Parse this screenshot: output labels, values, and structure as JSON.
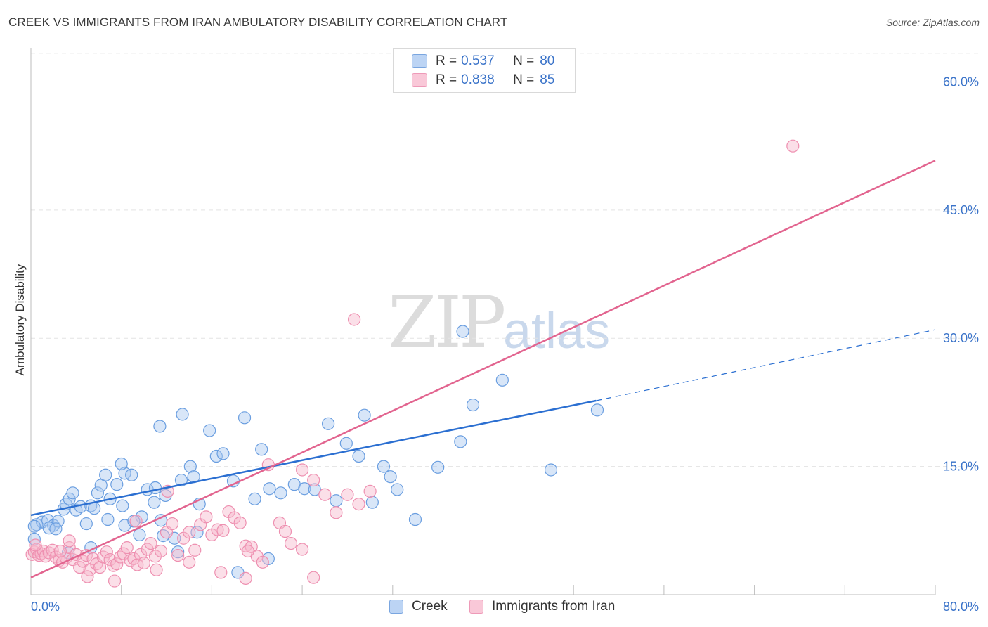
{
  "title": "CREEK VS IMMIGRANTS FROM IRAN AMBULATORY DISABILITY CORRELATION CHART",
  "source": "Source: ZipAtlas.com",
  "watermark": {
    "zip": "ZIP",
    "atlas": "atlas"
  },
  "legend": {
    "rows": [
      {
        "r_label": "R =",
        "r_value": "0.537",
        "n_label": "N =",
        "n_value": "80"
      },
      {
        "r_label": "R =",
        "r_value": "0.838",
        "n_label": "N =",
        "n_value": "85"
      }
    ]
  },
  "bottom_legend": {
    "creek": "Creek",
    "iran": "Immigrants from Iran"
  },
  "colors": {
    "creek_fill": "#a9c8f0",
    "creek_stroke": "#6a9ee0",
    "creek_line": "#2b6fd1",
    "iran_fill": "#f7b8cd",
    "iran_stroke": "#ee8fb0",
    "iran_line": "#e2648f",
    "tick_text": "#3a73c9"
  },
  "chart_data": {
    "type": "scatter",
    "title": "CREEK VS IMMIGRANTS FROM IRAN AMBULATORY DISABILITY CORRELATION CHART",
    "xlabel": "",
    "ylabel": "Ambulatory Disability",
    "xlim": [
      0,
      80
    ],
    "ylim": [
      0,
      63
    ],
    "x_tick_labels": [
      "0.0%",
      "80.0%"
    ],
    "y_ticks": [
      15,
      30,
      45,
      60
    ],
    "y_tick_labels": [
      "15.0%",
      "30.0%",
      "45.0%",
      "60.0%"
    ],
    "series": [
      {
        "name": "Creek",
        "r": 0.537,
        "n": 80,
        "trend": {
          "x0": 0,
          "y0": 9.3,
          "x1": 50,
          "y1": 22.7,
          "dash_to_x": 80,
          "dash_to_y": 31.0
        },
        "points": [
          [
            0.5,
            8.2
          ],
          [
            1.0,
            8.5
          ],
          [
            1.5,
            8.7
          ],
          [
            2.0,
            8.1
          ],
          [
            2.4,
            8.6
          ],
          [
            2.9,
            10.0
          ],
          [
            3.1,
            10.6
          ],
          [
            3.4,
            11.2
          ],
          [
            3.7,
            11.9
          ],
          [
            4.0,
            9.9
          ],
          [
            4.4,
            10.3
          ],
          [
            4.9,
            8.3
          ],
          [
            5.3,
            10.4
          ],
          [
            5.6,
            10.1
          ],
          [
            5.9,
            11.9
          ],
          [
            6.2,
            12.8
          ],
          [
            6.6,
            14.0
          ],
          [
            7.0,
            11.2
          ],
          [
            7.6,
            12.9
          ],
          [
            8.3,
            14.2
          ],
          [
            8.9,
            14.0
          ],
          [
            9.8,
            9.1
          ],
          [
            10.3,
            12.3
          ],
          [
            10.9,
            10.8
          ],
          [
            11.4,
            19.7
          ],
          [
            11.9,
            11.6
          ],
          [
            12.7,
            6.6
          ],
          [
            13.3,
            13.4
          ],
          [
            14.1,
            15.0
          ],
          [
            14.9,
            10.6
          ],
          [
            15.8,
            19.2
          ],
          [
            16.4,
            16.2
          ],
          [
            17.0,
            16.5
          ],
          [
            17.9,
            13.3
          ],
          [
            18.9,
            20.7
          ],
          [
            19.8,
            11.2
          ],
          [
            20.4,
            17.0
          ],
          [
            21.1,
            12.4
          ],
          [
            22.1,
            11.9
          ],
          [
            23.3,
            12.9
          ],
          [
            24.2,
            12.4
          ],
          [
            25.1,
            12.3
          ],
          [
            26.3,
            20.0
          ],
          [
            27.0,
            11.0
          ],
          [
            27.9,
            17.7
          ],
          [
            29.0,
            16.2
          ],
          [
            29.5,
            21.0
          ],
          [
            30.2,
            10.8
          ],
          [
            31.2,
            15.0
          ],
          [
            31.8,
            13.8
          ],
          [
            32.4,
            12.3
          ],
          [
            34.0,
            8.8
          ],
          [
            36.0,
            14.9
          ],
          [
            38.0,
            17.9
          ],
          [
            39.1,
            22.2
          ],
          [
            38.2,
            30.8
          ],
          [
            41.7,
            25.1
          ],
          [
            50.1,
            21.6
          ],
          [
            46.0,
            14.6
          ],
          [
            21.0,
            4.2
          ],
          [
            18.3,
            2.6
          ],
          [
            13.0,
            5.0
          ],
          [
            11.7,
            6.9
          ],
          [
            9.6,
            7.0
          ],
          [
            8.3,
            8.1
          ],
          [
            6.8,
            8.8
          ],
          [
            5.3,
            5.5
          ],
          [
            3.3,
            4.9
          ],
          [
            1.6,
            7.8
          ],
          [
            0.3,
            8.0
          ],
          [
            11.5,
            8.7
          ],
          [
            14.7,
            7.3
          ],
          [
            8.0,
            15.3
          ],
          [
            11.0,
            12.5
          ],
          [
            8.1,
            10.4
          ],
          [
            13.4,
            21.1
          ],
          [
            14.4,
            13.8
          ],
          [
            9.1,
            8.6
          ],
          [
            0.3,
            6.5
          ],
          [
            2.2,
            7.7
          ]
        ]
      },
      {
        "name": "Immigrants from Iran",
        "r": 0.838,
        "n": 85,
        "trend": {
          "x0": 0,
          "y0": 2.0,
          "x1": 80,
          "y1": 50.8
        },
        "points": [
          [
            0.1,
            4.7
          ],
          [
            0.3,
            5.0
          ],
          [
            0.5,
            5.3
          ],
          [
            0.7,
            4.6
          ],
          [
            0.9,
            4.8
          ],
          [
            1.1,
            5.1
          ],
          [
            1.3,
            4.5
          ],
          [
            1.6,
            4.9
          ],
          [
            1.9,
            5.2
          ],
          [
            2.2,
            4.4
          ],
          [
            2.5,
            4.0
          ],
          [
            2.8,
            3.8
          ],
          [
            3.1,
            4.3
          ],
          [
            3.4,
            5.5
          ],
          [
            3.7,
            4.1
          ],
          [
            4.0,
            4.7
          ],
          [
            4.3,
            3.2
          ],
          [
            4.6,
            3.9
          ],
          [
            4.9,
            4.6
          ],
          [
            5.2,
            2.9
          ],
          [
            5.5,
            4.2
          ],
          [
            5.8,
            3.6
          ],
          [
            6.1,
            3.2
          ],
          [
            6.4,
            4.4
          ],
          [
            6.7,
            5.0
          ],
          [
            7.0,
            4.1
          ],
          [
            7.3,
            3.4
          ],
          [
            7.6,
            3.6
          ],
          [
            7.9,
            4.4
          ],
          [
            8.2,
            4.8
          ],
          [
            8.5,
            5.5
          ],
          [
            8.8,
            4.0
          ],
          [
            9.1,
            4.2
          ],
          [
            9.4,
            3.5
          ],
          [
            9.7,
            4.7
          ],
          [
            10.0,
            3.7
          ],
          [
            10.3,
            5.3
          ],
          [
            10.6,
            6.0
          ],
          [
            11.0,
            4.5
          ],
          [
            11.5,
            5.1
          ],
          [
            12.0,
            7.3
          ],
          [
            12.5,
            8.3
          ],
          [
            13.0,
            4.6
          ],
          [
            13.5,
            6.6
          ],
          [
            14.0,
            7.3
          ],
          [
            14.5,
            5.2
          ],
          [
            15.0,
            8.2
          ],
          [
            15.5,
            9.1
          ],
          [
            16.0,
            7.0
          ],
          [
            16.5,
            7.6
          ],
          [
            17.0,
            7.5
          ],
          [
            17.5,
            9.7
          ],
          [
            18.0,
            9.0
          ],
          [
            18.5,
            8.4
          ],
          [
            19.0,
            5.7
          ],
          [
            19.5,
            5.6
          ],
          [
            20.0,
            4.5
          ],
          [
            20.5,
            3.8
          ],
          [
            21.0,
            15.2
          ],
          [
            22.0,
            8.4
          ],
          [
            23.0,
            6.0
          ],
          [
            24.0,
            14.6
          ],
          [
            25.0,
            13.4
          ],
          [
            26.0,
            11.7
          ],
          [
            27.0,
            9.6
          ],
          [
            28.0,
            11.7
          ],
          [
            29.0,
            10.6
          ],
          [
            30.0,
            12.1
          ],
          [
            19.0,
            1.9
          ],
          [
            25.0,
            2.0
          ],
          [
            19.2,
            5.1
          ],
          [
            22.5,
            7.4
          ],
          [
            12.1,
            12.1
          ],
          [
            28.6,
            32.2
          ],
          [
            67.4,
            52.5
          ],
          [
            7.4,
            1.6
          ],
          [
            5.0,
            2.1
          ],
          [
            3.4,
            6.3
          ],
          [
            2.6,
            5.1
          ],
          [
            9.3,
            8.6
          ],
          [
            14.0,
            3.8
          ],
          [
            16.8,
            2.6
          ],
          [
            11.1,
            2.9
          ],
          [
            24.0,
            5.3
          ],
          [
            0.4,
            5.8
          ]
        ]
      }
    ]
  }
}
